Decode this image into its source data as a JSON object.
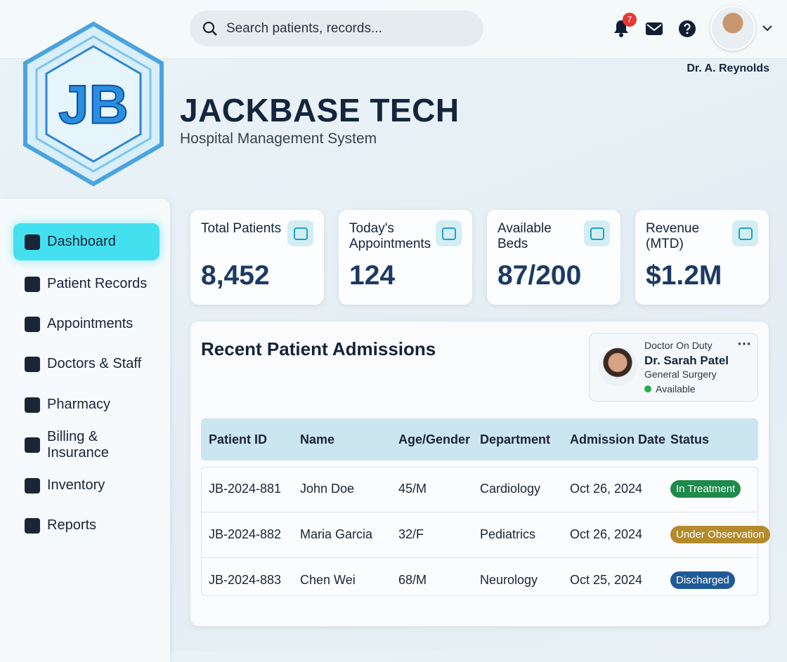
{
  "header": {
    "search_placeholder": "Search patients, records...",
    "notification_count": "7",
    "user_name": "Dr. A. Reynolds"
  },
  "brand": {
    "logo": "JB",
    "title": "JACKBASE TECH",
    "subtitle": "Hospital Management System"
  },
  "nav": {
    "items": [
      "Dashboard",
      "Patient Records",
      "Appointments",
      "Doctors & Staff",
      "Pharmacy",
      "Billing & Insurance",
      "Inventory",
      "Reports"
    ]
  },
  "stats": [
    {
      "label": "Total Patients",
      "value": "8,452"
    },
    {
      "label": "Today's Appointments",
      "value": "124"
    },
    {
      "label": "Available Beds",
      "value": "87/200"
    },
    {
      "label": "Revenue (MTD)",
      "value": "$1.2M"
    }
  ],
  "admissions": {
    "title": "Recent Patient Admissions",
    "doctor": {
      "heading": "Doctor On Duty",
      "name": "Dr. Sarah Patel",
      "department": "General Surgery",
      "status": "Available"
    },
    "table": {
      "columns": [
        "Patient ID",
        "Name",
        "Age/Gender",
        "Department",
        "Admission Date",
        "Status"
      ],
      "rows": [
        [
          "JB-2024-881",
          "John Doe",
          "45/M",
          "Cardiology",
          "Oct 26, 2024",
          "In Treatment"
        ],
        [
          "JB-2024-882",
          "Maria Garcia",
          "32/F",
          "Pediatrics",
          "Oct 26, 2024",
          "Under Observation"
        ],
        [
          "JB-2024-883",
          "Chen Wei",
          "68/M",
          "Neurology",
          "Oct 25, 2024",
          "Discharged"
        ]
      ]
    }
  }
}
